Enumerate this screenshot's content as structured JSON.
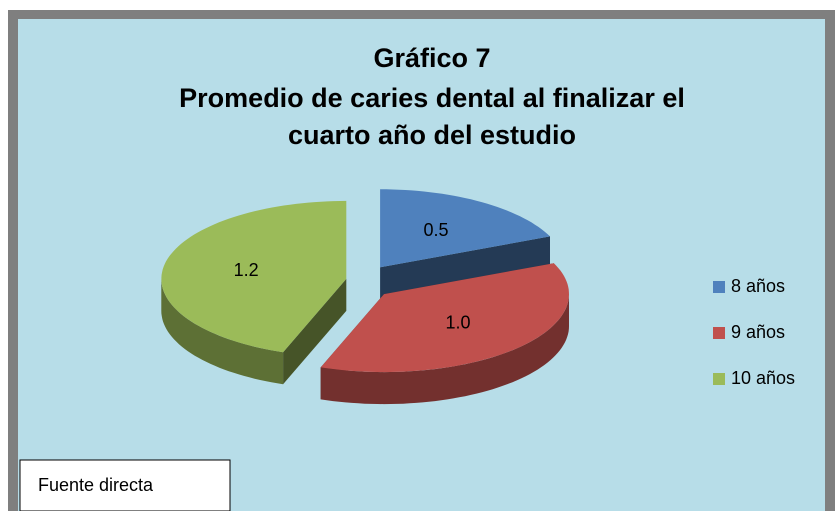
{
  "chart_data": {
    "type": "pie",
    "title": [
      "Gráfico 7",
      "Promedio de caries dental al finalizar el",
      "cuarto año del estudio"
    ],
    "categories": [
      "8 años",
      "9 años",
      "10 años"
    ],
    "values": [
      0.5,
      1.0,
      1.2
    ],
    "value_labels": [
      "0.5",
      "1.0",
      "1.2"
    ],
    "colors": [
      "#4f81bd",
      "#c0504d",
      "#9bbb59"
    ],
    "legend": "right",
    "note": "Fuente directa"
  }
}
